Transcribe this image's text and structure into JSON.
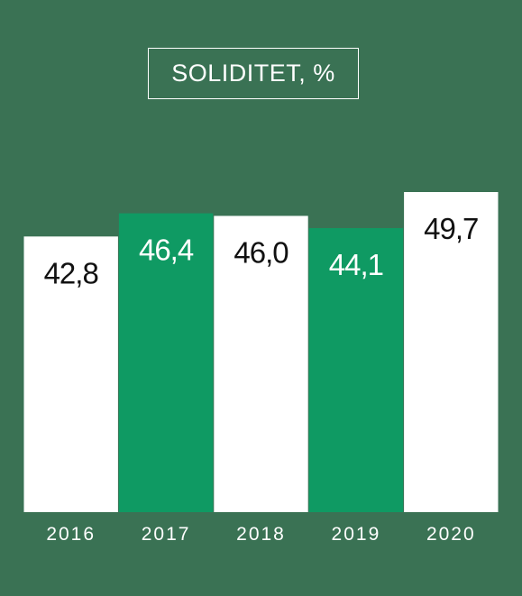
{
  "chart_data": {
    "type": "bar",
    "title": "SOLIDITET, %",
    "categories": [
      "2016",
      "2017",
      "2018",
      "2019",
      "2020"
    ],
    "values": [
      42.8,
      46.4,
      46.0,
      44.1,
      49.7
    ],
    "value_labels": [
      "42,8",
      "46,4",
      "46,0",
      "44,1",
      "49,7"
    ],
    "bar_colors": [
      "#ffffff",
      "#0f9a63",
      "#ffffff",
      "#0f9a63",
      "#ffffff"
    ],
    "label_colors": [
      "#111111",
      "#ffffff",
      "#111111",
      "#ffffff",
      "#111111"
    ],
    "xlabel": "",
    "ylabel": "",
    "ylim": [
      0,
      49.7
    ],
    "grid": false,
    "legend": "none"
  },
  "colors": {
    "background": "#3a7254",
    "bar_primary": "#ffffff",
    "bar_accent": "#0f9a63",
    "text": "#ffffff"
  }
}
